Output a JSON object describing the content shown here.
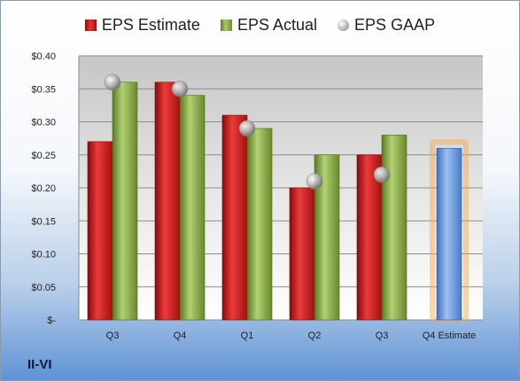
{
  "ticker": "II-VI",
  "chart_data": {
    "type": "bar",
    "categories": [
      "Q3",
      "Q4",
      "Q1",
      "Q2",
      "Q3",
      "Q4 Estimate"
    ],
    "series": [
      {
        "name": "EPS Estimate",
        "values": [
          0.27,
          0.36,
          0.31,
          0.2,
          0.25,
          null
        ],
        "color": "#c81e1e"
      },
      {
        "name": "EPS Actual",
        "values": [
          0.36,
          0.34,
          0.29,
          0.25,
          0.28,
          null
        ],
        "color": "#8db04c"
      },
      {
        "name": "EPS GAAP",
        "values": [
          0.36,
          0.35,
          0.29,
          0.21,
          0.22,
          null
        ],
        "color": "#a8a8a8"
      }
    ],
    "projection": {
      "category": "Q4 Estimate",
      "value": 0.26,
      "color": "#6e9be0",
      "highlight": "#f5a64a"
    },
    "y_ticks": [
      "$-",
      "$0.05",
      "$0.10",
      "$0.15",
      "$0.20",
      "$0.25",
      "$0.30",
      "$0.35",
      "$0.40"
    ],
    "ylim": [
      0,
      0.4
    ],
    "grid": true,
    "legend_position": "top"
  }
}
